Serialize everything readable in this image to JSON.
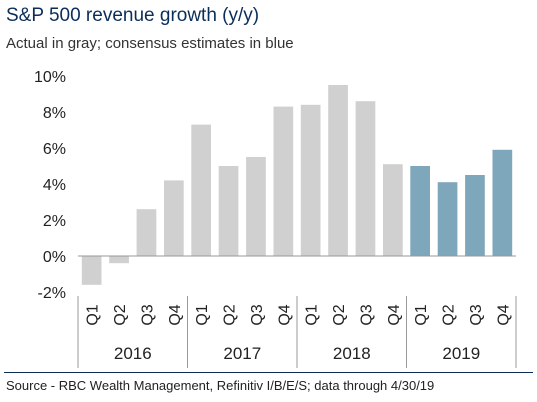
{
  "header": {
    "title": "S&P 500 revenue growth (y/y)",
    "subtitle": "Actual in gray; consensus estimates in blue"
  },
  "footer": {
    "source": "Source - RBC Wealth Management, Refinitiv I/B/E/S; data through 4/30/19"
  },
  "colors": {
    "actual": "#d0d0d0",
    "estimate": "#7ea7bb",
    "axis": "#999999"
  },
  "chart_data": {
    "type": "bar",
    "title": "S&P 500 revenue growth (y/y)",
    "subtitle": "Actual in gray; consensus estimates in blue",
    "ylim": [
      -2,
      10
    ],
    "yticks": [
      -2,
      0,
      2,
      4,
      6,
      8,
      10
    ],
    "ytick_labels": [
      "-2%",
      "0%",
      "2%",
      "4%",
      "6%",
      "8%",
      "10%"
    ],
    "grid": false,
    "categories": [
      "Q1",
      "Q2",
      "Q3",
      "Q4",
      "Q1",
      "Q2",
      "Q3",
      "Q4",
      "Q1",
      "Q2",
      "Q3",
      "Q4",
      "Q1",
      "Q2",
      "Q3",
      "Q4"
    ],
    "groups": [
      {
        "label": "2016",
        "count": 4
      },
      {
        "label": "2017",
        "count": 4
      },
      {
        "label": "2018",
        "count": 4
      },
      {
        "label": "2019",
        "count": 4
      }
    ],
    "values": [
      -1.6,
      -0.4,
      2.6,
      4.2,
      7.3,
      5.0,
      5.5,
      8.3,
      8.4,
      9.5,
      8.6,
      5.1,
      5.0,
      4.1,
      4.5,
      5.9
    ],
    "series_kind": [
      "actual",
      "actual",
      "actual",
      "actual",
      "actual",
      "actual",
      "actual",
      "actual",
      "actual",
      "actual",
      "actual",
      "actual",
      "estimate",
      "estimate",
      "estimate",
      "estimate"
    ]
  }
}
